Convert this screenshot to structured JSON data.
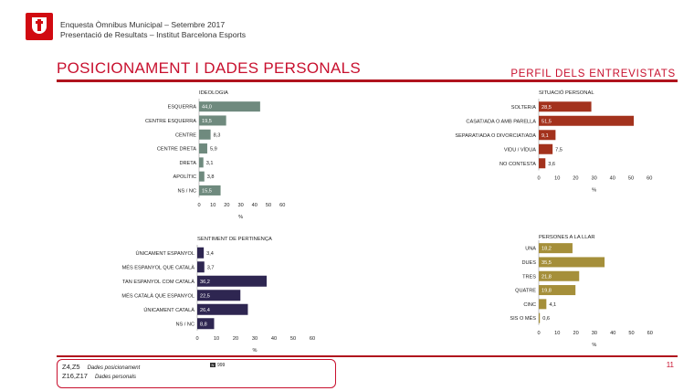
{
  "header": {
    "line1": "Enquesta Òmnibus Municipal – Setembre 2017",
    "line2": "Presentació de Resultats – Institut Barcelona Esports"
  },
  "page_title": "POSICIONAMENT I DADES PERSONALS",
  "section_title": "PERFIL DELS ENTREVISTATS",
  "page_number": "11",
  "footer": {
    "rows": [
      {
        "code": "Z4,Z5",
        "desc": "Dades posicionament"
      },
      {
        "code": "Z16,Z17",
        "desc": "Dades personals"
      }
    ],
    "n_label": "999",
    "n_icon": "n-icon"
  },
  "chart_data": [
    {
      "type": "bar",
      "title": "IDEOLOGIA",
      "categories": [
        "ESQUERRA",
        "CENTRE ESQUERRA",
        "CENTRE",
        "CENTRE DRETA",
        "DRETA",
        "APOLÍTIC",
        "NS / NC"
      ],
      "labels": [
        "44,0",
        "19,5",
        "8,3",
        "5,9",
        "3,1",
        "3,8",
        "15,5"
      ],
      "values": [
        44.0,
        19.5,
        8.3,
        5.9,
        3.1,
        3.8,
        15.5
      ],
      "xlabel": "%",
      "xlim": [
        0,
        60
      ],
      "xticks": [
        "0",
        "10",
        "20",
        "30",
        "40",
        "50",
        "60"
      ],
      "color": "#6f8a7e"
    },
    {
      "type": "bar",
      "title": "SITUACIÓ PERSONAL",
      "categories": [
        "SOLTER/A",
        "CASAT/ADA O AMB PARELLA",
        "SEPARAT/ADA O DIVORCIAT/ADA",
        "VIDU / VÍDUA",
        "NO CONTESTA"
      ],
      "labels": [
        "28,5",
        "51,5",
        "9,1",
        "7,5",
        "3,6"
      ],
      "values": [
        28.5,
        51.5,
        9.1,
        7.5,
        3.6
      ],
      "xlabel": "%",
      "xlim": [
        0,
        60
      ],
      "xticks": [
        "0",
        "10",
        "20",
        "30",
        "40",
        "50",
        "60"
      ],
      "color": "#a3321d"
    },
    {
      "type": "bar",
      "title": "SENTIMENT DE PERTINENÇA",
      "categories": [
        "ÚNICAMENT ESPANYOL",
        "MÉS ESPANYOL QUE CATALÀ",
        "TAN ESPANYOL COM CATALÀ",
        "MÉS CATALÀ QUE ESPANYOL",
        "ÚNICAMENT CATALÀ",
        "NS / NC"
      ],
      "labels": [
        "3,4",
        "3,7",
        "36,2",
        "22,5",
        "26,4",
        "8,8"
      ],
      "values": [
        3.4,
        3.7,
        36.2,
        22.5,
        26.4,
        8.8
      ],
      "xlabel": "%",
      "xlim": [
        0,
        60
      ],
      "xticks": [
        "0",
        "10",
        "20",
        "30",
        "40",
        "50",
        "60"
      ],
      "color": "#2e2651"
    },
    {
      "type": "bar",
      "title": "PERSONES A LA LLAR",
      "categories": [
        "UNA",
        "DUES",
        "TRES",
        "QUATRE",
        "CINC",
        "SIS O MÉS"
      ],
      "labels": [
        "18,2",
        "35,5",
        "21,8",
        "19,8",
        "4,1",
        "0,6"
      ],
      "values": [
        18.2,
        35.5,
        21.8,
        19.8,
        4.1,
        0.6
      ],
      "xlabel": "%",
      "xlim": [
        0,
        60
      ],
      "xticks": [
        "0",
        "10",
        "20",
        "30",
        "40",
        "50",
        "60"
      ],
      "color": "#a58f3a"
    }
  ]
}
